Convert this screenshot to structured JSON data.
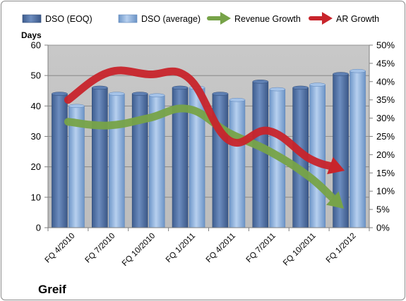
{
  "chart_data": {
    "type": "bar",
    "title": "Greif",
    "ylabel": "Days",
    "categories": [
      "FQ 4/2010",
      "FQ 7/2010",
      "FQ 10/2010",
      "FQ 1/2011",
      "FQ 4/2011",
      "FQ 7/2011",
      "FQ 10/2011",
      "FQ 1/2012"
    ],
    "ylim": [
      0,
      60
    ],
    "y_ticks": [
      "0",
      "10",
      "20",
      "30",
      "40",
      "50",
      "60"
    ],
    "y2lim": [
      0,
      0.5
    ],
    "y2_ticks": [
      "0%",
      "5%",
      "10%",
      "15%",
      "20%",
      "25%",
      "30%",
      "35%",
      "40%",
      "45%",
      "50%"
    ],
    "grid": "horizontal",
    "legend_position": "top",
    "series": [
      {
        "name": "DSO (EOQ)",
        "kind": "bar",
        "axis": "left",
        "color": "#4f6fa3",
        "values": [
          44,
          46,
          44,
          46,
          44,
          48,
          46,
          50.5
        ]
      },
      {
        "name": "DSO (average)",
        "kind": "bar",
        "axis": "left",
        "color": "#8db3e2",
        "values": [
          40,
          44,
          43.5,
          46,
          42,
          45.5,
          47,
          51.5
        ]
      },
      {
        "name": "Revenue Growth",
        "kind": "line",
        "axis": "right",
        "color": "#77a348",
        "values": [
          0.29,
          0.28,
          0.3,
          0.325,
          0.26,
          0.21,
          0.14,
          0.06
        ]
      },
      {
        "name": "AR Growth",
        "kind": "line",
        "axis": "right",
        "color": "#c8242b",
        "values": [
          0.35,
          0.425,
          0.42,
          0.41,
          0.24,
          0.265,
          0.19,
          0.16
        ]
      }
    ]
  }
}
